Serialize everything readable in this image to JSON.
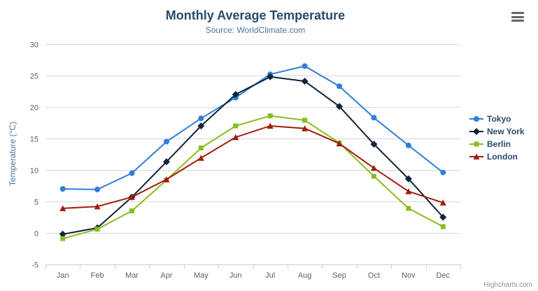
{
  "chart_data": {
    "type": "line",
    "title": "Monthly Average Temperature",
    "subtitle": "Source: WorldClimate.com",
    "categories": [
      "Jan",
      "Feb",
      "Mar",
      "Apr",
      "May",
      "Jun",
      "Jul",
      "Aug",
      "Sep",
      "Oct",
      "Nov",
      "Dec"
    ],
    "xlabel": "",
    "ylabel": "Temperature (°C)",
    "ylim": [
      -5,
      30
    ],
    "ytick_step": 5,
    "grid": true,
    "legend_position": "right",
    "series": [
      {
        "name": "Tokyo",
        "color": "#2f7ed8",
        "marker": "circle",
        "values": [
          7.0,
          6.9,
          9.5,
          14.5,
          18.2,
          21.5,
          25.2,
          26.5,
          23.3,
          18.3,
          13.9,
          9.6
        ]
      },
      {
        "name": "New York",
        "color": "#0d233a",
        "marker": "diamond",
        "values": [
          -0.2,
          0.8,
          5.7,
          11.3,
          17.0,
          22.0,
          24.8,
          24.1,
          20.1,
          14.1,
          8.6,
          2.5
        ]
      },
      {
        "name": "Berlin",
        "color": "#8bbc21",
        "marker": "square",
        "values": [
          -0.9,
          0.6,
          3.5,
          8.4,
          13.5,
          17.0,
          18.6,
          17.9,
          14.3,
          9.0,
          3.9,
          1.0
        ]
      },
      {
        "name": "London",
        "color": "#a01c0e",
        "marker": "triangle",
        "values": [
          3.9,
          4.2,
          5.7,
          8.5,
          11.9,
          15.2,
          17.0,
          16.6,
          14.2,
          10.3,
          6.6,
          4.8
        ]
      }
    ],
    "credits": "Highcharts.com",
    "colors": {
      "title": "#274b6d",
      "subtitle": "#4d759e",
      "axis_label": "#606060",
      "axis_title": "#4d759e",
      "gridline": "#d8d8d8",
      "axis_line": "#c0d0e0"
    }
  }
}
